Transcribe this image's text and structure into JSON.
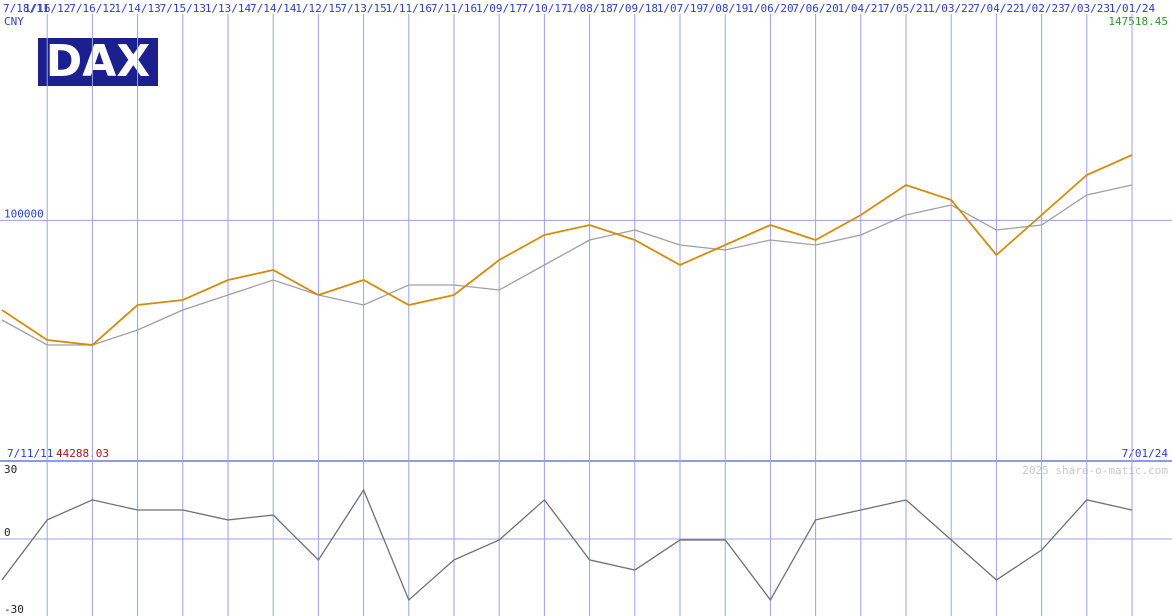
{
  "chart_data": {
    "type": "line",
    "title": "DAX",
    "currency": "CNY",
    "start_date": "7/11/11",
    "end_date": "7/01/24",
    "credit": "2025 share-o-matic.com",
    "categories": [
      "7/18/11",
      "1/16/12",
      "7/16/12",
      "1/14/13",
      "7/15/13",
      "1/13/14",
      "7/14/14",
      "1/12/15",
      "7/13/15",
      "1/11/16",
      "7/11/16",
      "1/09/17",
      "7/10/17",
      "1/08/18",
      "7/09/18",
      "1/07/19",
      "7/08/19",
      "1/06/20",
      "7/06/20",
      "1/04/21",
      "7/05/21",
      "1/03/22",
      "7/04/22",
      "1/02/23",
      "7/03/23",
      "1/01/24"
    ],
    "series": [
      {
        "color": "#d48c0c",
        "values": [
          79163,
          72188,
          71025,
          80325,
          81488,
          86138,
          88463,
          82650,
          86138,
          80325,
          82650,
          90788,
          96600,
          98925,
          95438,
          89625,
          94275,
          98925,
          95438,
          101250,
          108225,
          104738,
          91950,
          101250,
          110550,
          115200
        ]
      },
      {
        "color": "#a0a0a0",
        "values": [
          76838,
          71025,
          71025,
          74513,
          79163,
          82650,
          86138,
          82650,
          80325,
          84975,
          84975,
          83813,
          89625,
          95438,
          97763,
          94275,
          93113,
          95438,
          94275,
          96600,
          101250,
          103575,
          97763,
          98925,
          105900,
          108225
        ]
      },
      {
        "color": "#707070",
        "axis": "y2",
        "values": [
          -17.8,
          8.3,
          17,
          12.6,
          12.6,
          8.3,
          10.4,
          -9.1,
          21.3,
          -26.5,
          -9.1,
          -0.4,
          17,
          -9.1,
          -13.5,
          -0.4,
          -0.4,
          -26.5,
          8.3,
          12.6,
          17,
          -0.4,
          -17.8,
          -4.8,
          17,
          12.6
        ]
      }
    ],
    "ylim": [
      44288.03,
      147518.45
    ],
    "yticks": [
      100000
    ],
    "y2lim": [
      -30,
      30
    ],
    "y2ticks": [
      -30,
      0,
      30
    ],
    "grid": true
  }
}
